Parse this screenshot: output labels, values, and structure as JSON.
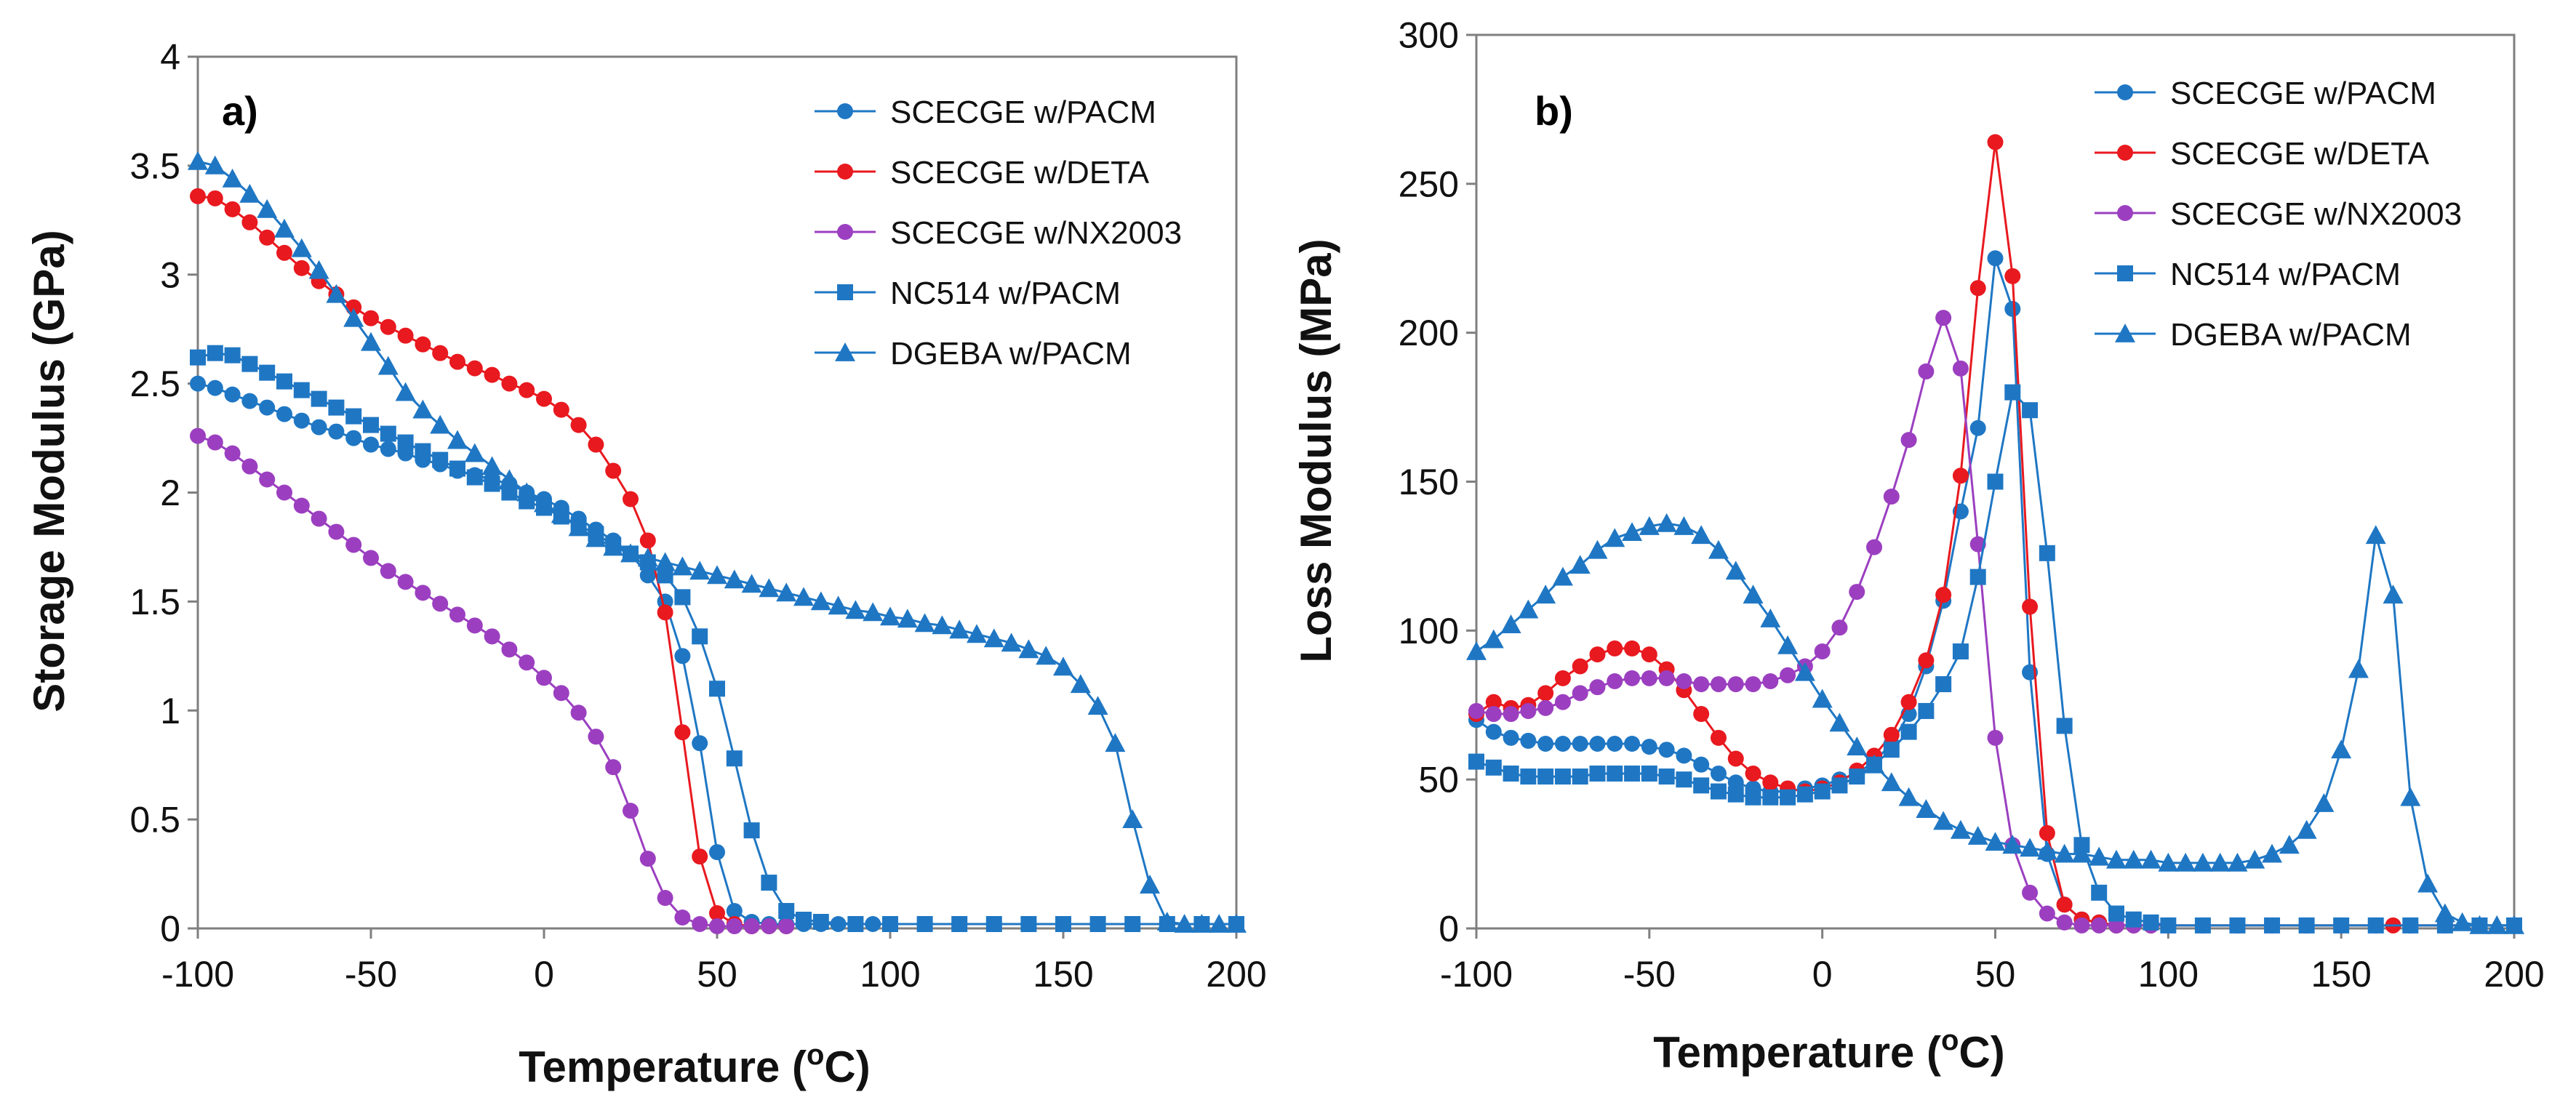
{
  "chart_data": [
    {
      "type": "line",
      "panel_label": "a)",
      "title": "",
      "xlabel": "Temperature",
      "xlabel_unit": "C",
      "xlabel_sup": "o",
      "ylabel": "Storage Modulus (GPa)",
      "xlim": [
        -100,
        200
      ],
      "ylim": [
        0,
        4
      ],
      "xticks": [
        -100,
        -50,
        0,
        50,
        100,
        150,
        200
      ],
      "yticks": [
        0,
        0.5,
        1,
        1.5,
        2,
        2.5,
        3,
        3.5,
        4
      ],
      "ytick_labels": [
        "0",
        "0.5",
        "1",
        "1.5",
        "2",
        "2.5",
        "3",
        "3.5",
        "4"
      ],
      "legend_position": "top-right",
      "series": [
        {
          "name": "SCECGE w/PACM",
          "color": "#1f77c4",
          "marker": "circle",
          "x": [
            -100,
            -95,
            -90,
            -85,
            -80,
            -75,
            -70,
            -65,
            -60,
            -55,
            -50,
            -45,
            -40,
            -35,
            -30,
            -25,
            -20,
            -15,
            -10,
            -5,
            0,
            5,
            10,
            15,
            20,
            25,
            30,
            35,
            40,
            45,
            50,
            55,
            60,
            65,
            70,
            75,
            80,
            85,
            90,
            95,
            100,
            110,
            120,
            130,
            140,
            150,
            160,
            170,
            180,
            190,
            200
          ],
          "y": [
            2.5,
            2.48,
            2.45,
            2.42,
            2.39,
            2.36,
            2.33,
            2.3,
            2.28,
            2.25,
            2.22,
            2.2,
            2.18,
            2.15,
            2.13,
            2.1,
            2.08,
            2.06,
            2.04,
            2.0,
            1.97,
            1.93,
            1.88,
            1.83,
            1.78,
            1.72,
            1.62,
            1.5,
            1.25,
            0.85,
            0.35,
            0.08,
            0.03,
            0.02,
            0.02,
            0.02,
            0.02,
            0.02,
            0.02,
            0.02,
            0.02,
            0.02,
            0.02,
            0.02,
            0.02,
            0.02,
            0.02,
            0.02,
            0.02,
            0.02,
            0.02
          ]
        },
        {
          "name": "SCECGE w/DETA",
          "color": "#e8191f",
          "marker": "circle",
          "x": [
            -100,
            -95,
            -90,
            -85,
            -80,
            -75,
            -70,
            -65,
            -60,
            -55,
            -50,
            -45,
            -40,
            -35,
            -30,
            -25,
            -20,
            -15,
            -10,
            -5,
            0,
            5,
            10,
            15,
            20,
            25,
            30,
            35,
            40,
            45,
            50,
            55,
            60,
            65,
            70
          ],
          "y": [
            3.36,
            3.35,
            3.3,
            3.24,
            3.17,
            3.1,
            3.03,
            2.97,
            2.91,
            2.85,
            2.8,
            2.76,
            2.72,
            2.68,
            2.64,
            2.6,
            2.57,
            2.54,
            2.5,
            2.47,
            2.43,
            2.38,
            2.31,
            2.22,
            2.1,
            1.97,
            1.78,
            1.45,
            0.9,
            0.33,
            0.07,
            0.02,
            0.01,
            0.01,
            0.01
          ]
        },
        {
          "name": "SCECGE w/NX2003",
          "color": "#9b3fc0",
          "marker": "circle",
          "x": [
            -100,
            -95,
            -90,
            -85,
            -80,
            -75,
            -70,
            -65,
            -60,
            -55,
            -50,
            -45,
            -40,
            -35,
            -30,
            -25,
            -20,
            -15,
            -10,
            -5,
            0,
            5,
            10,
            15,
            20,
            25,
            30,
            35,
            40,
            45,
            50,
            55,
            60,
            65,
            70
          ],
          "y": [
            2.26,
            2.23,
            2.18,
            2.12,
            2.06,
            2.0,
            1.94,
            1.88,
            1.82,
            1.76,
            1.7,
            1.64,
            1.59,
            1.54,
            1.49,
            1.44,
            1.39,
            1.34,
            1.28,
            1.22,
            1.15,
            1.08,
            0.99,
            0.88,
            0.74,
            0.54,
            0.32,
            0.14,
            0.05,
            0.02,
            0.01,
            0.01,
            0.01,
            0.01,
            0.01
          ]
        },
        {
          "name": "NC514 w/PACM",
          "color": "#1f77c4",
          "marker": "square",
          "x": [
            -100,
            -95,
            -90,
            -85,
            -80,
            -75,
            -70,
            -65,
            -60,
            -55,
            -50,
            -45,
            -40,
            -35,
            -30,
            -25,
            -20,
            -15,
            -10,
            -5,
            0,
            5,
            10,
            15,
            20,
            25,
            30,
            35,
            40,
            45,
            50,
            55,
            60,
            65,
            70,
            75,
            80,
            90,
            100,
            110,
            120,
            130,
            140,
            150,
            160,
            170,
            180,
            190,
            200
          ],
          "y": [
            2.62,
            2.64,
            2.63,
            2.59,
            2.55,
            2.51,
            2.47,
            2.43,
            2.39,
            2.35,
            2.31,
            2.27,
            2.23,
            2.19,
            2.15,
            2.11,
            2.07,
            2.04,
            2.0,
            1.96,
            1.93,
            1.89,
            1.85,
            1.81,
            1.76,
            1.72,
            1.68,
            1.62,
            1.52,
            1.34,
            1.1,
            0.78,
            0.45,
            0.21,
            0.08,
            0.04,
            0.03,
            0.02,
            0.02,
            0.02,
            0.02,
            0.02,
            0.02,
            0.02,
            0.02,
            0.02,
            0.02,
            0.02,
            0.02
          ]
        },
        {
          "name": "DGEBA w/PACM",
          "color": "#1f77c4",
          "marker": "triangle",
          "x": [
            -100,
            -95,
            -90,
            -85,
            -80,
            -75,
            -70,
            -65,
            -60,
            -55,
            -50,
            -45,
            -40,
            -35,
            -30,
            -25,
            -20,
            -15,
            -10,
            -5,
            0,
            5,
            10,
            15,
            20,
            25,
            30,
            35,
            40,
            45,
            50,
            55,
            60,
            65,
            70,
            75,
            80,
            85,
            90,
            95,
            100,
            105,
            110,
            115,
            120,
            125,
            130,
            135,
            140,
            145,
            150,
            155,
            160,
            165,
            170,
            175,
            180,
            185,
            190,
            195,
            200
          ],
          "y": [
            3.52,
            3.5,
            3.44,
            3.37,
            3.3,
            3.21,
            3.12,
            3.02,
            2.91,
            2.8,
            2.69,
            2.58,
            2.46,
            2.38,
            2.31,
            2.24,
            2.18,
            2.12,
            2.06,
            2.0,
            1.95,
            1.9,
            1.84,
            1.79,
            1.75,
            1.72,
            1.7,
            1.68,
            1.66,
            1.64,
            1.62,
            1.6,
            1.58,
            1.56,
            1.54,
            1.52,
            1.5,
            1.48,
            1.46,
            1.45,
            1.43,
            1.42,
            1.4,
            1.39,
            1.37,
            1.35,
            1.33,
            1.31,
            1.28,
            1.25,
            1.2,
            1.12,
            1.02,
            0.85,
            0.5,
            0.2,
            0.03,
            0.02,
            0.02,
            0.02,
            0.02
          ]
        }
      ]
    },
    {
      "type": "line",
      "panel_label": "b)",
      "title": "",
      "xlabel": "Temperature",
      "xlabel_unit": "C",
      "xlabel_sup": "o",
      "ylabel": "Loss Modulus (MPa)",
      "xlim": [
        -100,
        200
      ],
      "ylim": [
        0,
        300
      ],
      "xticks": [
        -100,
        -50,
        0,
        50,
        100,
        150,
        200
      ],
      "yticks": [
        0,
        50,
        100,
        150,
        200,
        250,
        300
      ],
      "ytick_labels": [
        "0",
        "50",
        "100",
        "150",
        "200",
        "250",
        "300"
      ],
      "legend_position": "top-right",
      "series": [
        {
          "name": "SCECGE w/PACM",
          "color": "#1f77c4",
          "marker": "circle",
          "x": [
            -100,
            -95,
            -90,
            -85,
            -80,
            -75,
            -70,
            -65,
            -60,
            -55,
            -50,
            -45,
            -40,
            -35,
            -30,
            -25,
            -20,
            -15,
            -10,
            -5,
            0,
            5,
            10,
            15,
            20,
            25,
            30,
            35,
            40,
            45,
            50,
            55,
            60,
            65,
            70,
            75,
            80,
            85,
            90,
            95,
            100,
            110,
            120,
            130,
            140,
            150,
            160,
            170,
            180,
            190,
            200
          ],
          "y": [
            70,
            66,
            64,
            63,
            62,
            62,
            62,
            62,
            62,
            62,
            61,
            60,
            58,
            55,
            52,
            49,
            47,
            46,
            46,
            47,
            48,
            50,
            52,
            56,
            62,
            72,
            88,
            110,
            140,
            168,
            225,
            208,
            86,
            25,
            8,
            3,
            2,
            1,
            1,
            1,
            1,
            1,
            1,
            1,
            1,
            1,
            1,
            1,
            1,
            1,
            1
          ]
        },
        {
          "name": "SCECGE w/DETA",
          "color": "#e8191f",
          "marker": "circle",
          "x": [
            -100,
            -95,
            -90,
            -85,
            -80,
            -75,
            -70,
            -65,
            -60,
            -55,
            -50,
            -45,
            -40,
            -35,
            -30,
            -25,
            -20,
            -15,
            -10,
            -5,
            0,
            5,
            10,
            15,
            20,
            25,
            30,
            35,
            40,
            45,
            50,
            55,
            60,
            65,
            70,
            75,
            80,
            85,
            90,
            95,
            100,
            110,
            120,
            130,
            140,
            150,
            160,
            165,
            170,
            180,
            190,
            200
          ],
          "y": [
            72,
            76,
            74,
            75,
            79,
            84,
            88,
            92,
            94,
            94,
            92,
            87,
            80,
            72,
            64,
            57,
            52,
            49,
            47,
            46,
            47,
            49,
            53,
            58,
            65,
            76,
            90,
            112,
            152,
            215,
            264,
            219,
            108,
            32,
            8,
            3,
            2,
            1,
            1,
            1,
            1,
            1,
            1,
            1,
            1,
            1,
            1,
            1,
            1,
            1,
            1,
            1
          ]
        },
        {
          "name": "SCECGE w/NX2003",
          "color": "#9b3fc0",
          "marker": "circle",
          "x": [
            -100,
            -95,
            -90,
            -85,
            -80,
            -75,
            -70,
            -65,
            -60,
            -55,
            -50,
            -45,
            -40,
            -35,
            -30,
            -25,
            -20,
            -15,
            -10,
            -5,
            0,
            5,
            10,
            15,
            20,
            25,
            30,
            35,
            40,
            45,
            50,
            55,
            60,
            65,
            70,
            75,
            80,
            85,
            90,
            95,
            100
          ],
          "y": [
            73,
            72,
            72,
            73,
            74,
            76,
            79,
            81,
            83,
            84,
            84,
            84,
            83,
            82,
            82,
            82,
            82,
            83,
            85,
            88,
            93,
            101,
            113,
            128,
            145,
            164,
            187,
            205,
            188,
            129,
            64,
            28,
            12,
            5,
            2,
            1,
            1,
            1,
            1,
            1,
            1
          ]
        },
        {
          "name": "NC514 w/PACM",
          "color": "#1f77c4",
          "marker": "square",
          "x": [
            -100,
            -95,
            -90,
            -85,
            -80,
            -75,
            -70,
            -65,
            -60,
            -55,
            -50,
            -45,
            -40,
            -35,
            -30,
            -25,
            -20,
            -15,
            -10,
            -5,
            0,
            5,
            10,
            15,
            20,
            25,
            30,
            35,
            40,
            45,
            50,
            55,
            60,
            65,
            70,
            75,
            80,
            85,
            90,
            95,
            100,
            110,
            120,
            130,
            140,
            150,
            160,
            170,
            180,
            190,
            200
          ],
          "y": [
            56,
            54,
            52,
            51,
            51,
            51,
            51,
            52,
            52,
            52,
            52,
            51,
            50,
            48,
            46,
            45,
            44,
            44,
            44,
            45,
            46,
            48,
            51,
            55,
            60,
            66,
            73,
            82,
            93,
            118,
            150,
            180,
            174,
            126,
            68,
            28,
            12,
            5,
            3,
            2,
            1,
            1,
            1,
            1,
            1,
            1,
            1,
            1,
            1,
            1,
            1
          ]
        },
        {
          "name": "DGEBA w/PACM",
          "color": "#1f77c4",
          "marker": "triangle",
          "x": [
            -100,
            -95,
            -90,
            -85,
            -80,
            -75,
            -70,
            -65,
            -60,
            -55,
            -50,
            -45,
            -40,
            -35,
            -30,
            -25,
            -20,
            -15,
            -10,
            -5,
            0,
            5,
            10,
            15,
            20,
            25,
            30,
            35,
            40,
            45,
            50,
            55,
            60,
            65,
            70,
            75,
            80,
            85,
            90,
            95,
            100,
            105,
            110,
            115,
            120,
            125,
            130,
            135,
            140,
            145,
            150,
            155,
            160,
            165,
            170,
            175,
            180,
            185,
            190,
            195,
            200
          ],
          "y": [
            93,
            97,
            102,
            107,
            112,
            118,
            122,
            127,
            131,
            133,
            135,
            136,
            135,
            132,
            127,
            120,
            112,
            104,
            95,
            86,
            77,
            69,
            61,
            55,
            49,
            44,
            40,
            36,
            33,
            31,
            29,
            28,
            27,
            26,
            25,
            25,
            24,
            23,
            23,
            23,
            22,
            22,
            22,
            22,
            22,
            23,
            25,
            28,
            33,
            42,
            60,
            87,
            132,
            112,
            44,
            15,
            5,
            2,
            1,
            1,
            1
          ]
        }
      ]
    }
  ]
}
